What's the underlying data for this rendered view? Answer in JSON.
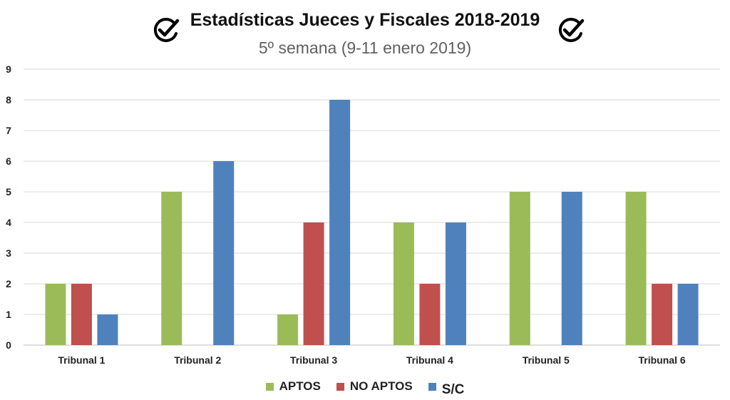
{
  "chart_data": {
    "type": "bar",
    "title": "Estadísticas Jueces y Fiscales 2018-2019",
    "subtitle": "5º semana (9-11 enero 2019)",
    "categories": [
      "Tribunal 1",
      "Tribunal 2",
      "Tribunal 3",
      "Tribunal 4",
      "Tribunal 5",
      "Tribunal 6"
    ],
    "series": [
      {
        "name": "APTOS",
        "color": "#9BBB59",
        "values": [
          2,
          5,
          1,
          4,
          5,
          5
        ]
      },
      {
        "name": "NO APTOS",
        "color": "#C0504D",
        "values": [
          2,
          0,
          4,
          2,
          0,
          2
        ]
      },
      {
        "name": "S/C",
        "color": "#4F81BD",
        "values": [
          1,
          6,
          8,
          4,
          5,
          2
        ]
      }
    ],
    "ylim": [
      0,
      9
    ],
    "yticks": [
      0,
      1,
      2,
      3,
      4,
      5,
      6,
      7,
      8,
      9
    ],
    "grid": true,
    "legend_position": "bottom"
  },
  "icons": {
    "left": "check-circle-icon",
    "right": "check-circle-icon"
  }
}
